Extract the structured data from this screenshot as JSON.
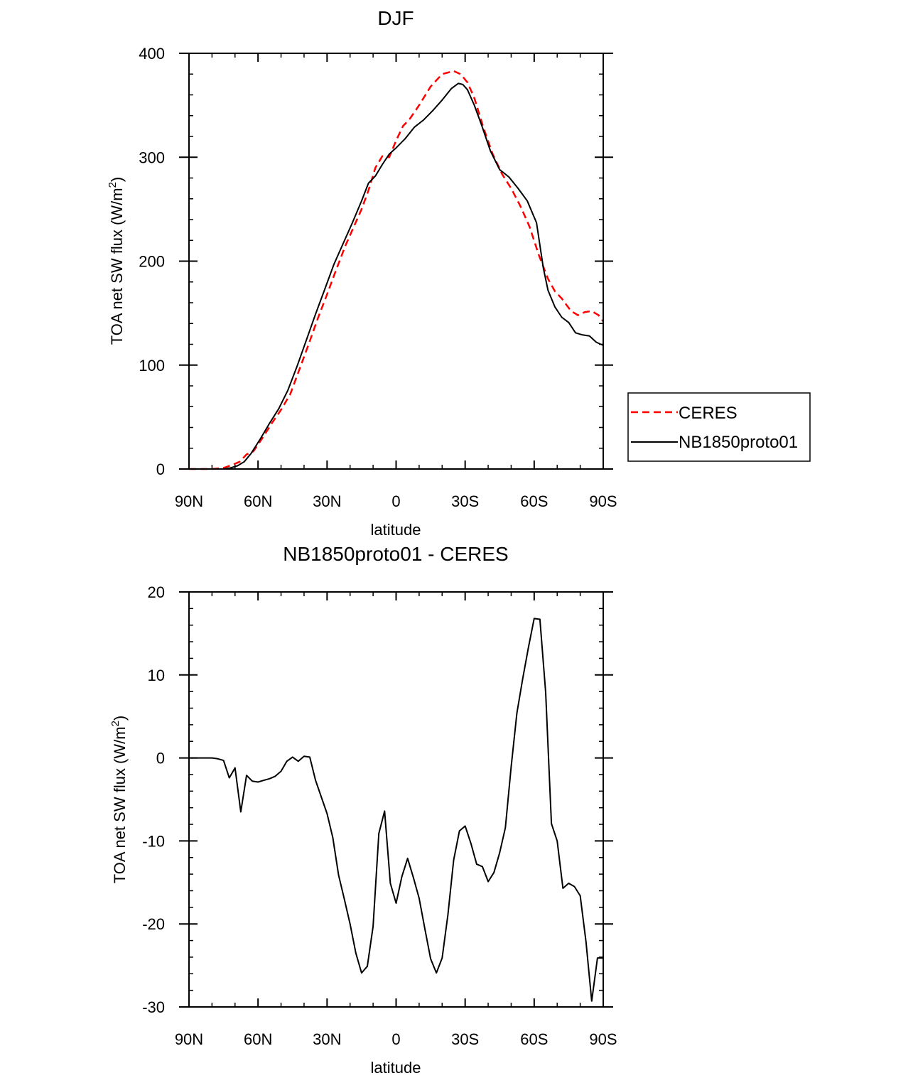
{
  "chart_data": [
    {
      "type": "line",
      "title": "DJF",
      "xlabel": "latitude",
      "ylabel_main": "TOA net SW flux (W/m",
      "ylabel_sup": "2",
      "ylabel_close": ")",
      "xlim": [
        -90,
        90
      ],
      "ylim": [
        0,
        400
      ],
      "x_ticks": [
        -90,
        -60,
        -30,
        0,
        30,
        60,
        90
      ],
      "x_tick_labels": [
        "90N",
        "60N",
        "30N",
        "0",
        "30S",
        "60S",
        "90S"
      ],
      "x_minor_step": 10,
      "y_ticks": [
        0,
        100,
        200,
        300,
        400
      ],
      "y_tick_labels": [
        "0",
        "100",
        "200",
        "300",
        "400"
      ],
      "y_minor_step": 20,
      "legend": {
        "position": "outside-right"
      },
      "series": [
        {
          "name": "CERES",
          "color": "#ff0000",
          "dash": "dashed",
          "x": [
            -90,
            -80,
            -75,
            -71,
            -68,
            -65,
            -62,
            -58,
            -54,
            -50,
            -46,
            -42,
            -38,
            -34,
            -30,
            -26,
            -22,
            -18,
            -15,
            -12,
            -9,
            -6,
            -3,
            0,
            3,
            6,
            10,
            15,
            20,
            25,
            28,
            31,
            34,
            38,
            42,
            46,
            50,
            54,
            58,
            62,
            66,
            69,
            72,
            76,
            79,
            82,
            85,
            88,
            90
          ],
          "y": [
            0,
            0,
            1,
            4,
            7,
            14,
            17,
            30,
            44,
            57,
            72,
            96,
            120,
            145,
            168,
            192,
            215,
            235,
            250,
            268,
            290,
            301,
            300,
            316,
            330,
            337,
            350,
            368,
            380,
            383,
            380,
            372,
            357,
            328,
            303,
            284,
            270,
            253,
            233,
            206,
            183,
            171,
            164,
            152,
            148,
            151,
            152,
            148,
            142
          ]
        },
        {
          "name": "NB1850proto01",
          "color": "#000000",
          "dash": "solid",
          "x": [
            -90,
            -80,
            -75,
            -72,
            -69,
            -66,
            -63,
            -59,
            -55,
            -51,
            -47,
            -43,
            -39,
            -35,
            -31,
            -27,
            -23,
            -19,
            -15,
            -12,
            -9,
            -6,
            -3,
            0,
            4,
            8,
            12,
            16,
            20,
            24,
            27,
            29,
            31,
            34,
            37,
            41,
            45,
            49,
            53,
            57,
            61,
            64,
            66,
            69,
            72,
            75,
            78,
            81,
            84,
            87,
            90
          ],
          "y": [
            0,
            0,
            0,
            1,
            3,
            7,
            15,
            29,
            44,
            58,
            76,
            99,
            124,
            149,
            173,
            197,
            217,
            237,
            258,
            275,
            282,
            293,
            303,
            309,
            318,
            329,
            336,
            345,
            355,
            366,
            371,
            370,
            365,
            350,
            332,
            306,
            288,
            281,
            270,
            258,
            237,
            193,
            172,
            156,
            146,
            141,
            131,
            129,
            128,
            122,
            119
          ]
        }
      ]
    },
    {
      "type": "line",
      "title": "NB1850proto01 - CERES",
      "xlabel": "latitude",
      "ylabel_main": "TOA net SW flux (W/m",
      "ylabel_sup": "2",
      "ylabel_close": ")",
      "xlim": [
        -90,
        90
      ],
      "ylim": [
        -30,
        20
      ],
      "x_ticks": [
        -90,
        -60,
        -30,
        0,
        30,
        60,
        90
      ],
      "x_tick_labels": [
        "90N",
        "60N",
        "30N",
        "0",
        "30S",
        "60S",
        "90S"
      ],
      "x_minor_step": 10,
      "y_ticks": [
        -30,
        -20,
        -10,
        0,
        10,
        20
      ],
      "y_tick_labels": [
        "-30",
        "-20",
        "-10",
        "0",
        "10",
        "20"
      ],
      "y_minor_step": 2,
      "series": [
        {
          "name": "NB1850proto01 - CERES",
          "color": "#000000",
          "dash": "solid",
          "x": [
            -90,
            -82.5,
            -80,
            -77.5,
            -75,
            -72.5,
            -70,
            -67.5,
            -65,
            -62.5,
            -60,
            -57.5,
            -55,
            -52.5,
            -50,
            -47.5,
            -45,
            -42.5,
            -40,
            -37.5,
            -35,
            -32.5,
            -30,
            -27.5,
            -25,
            -22.5,
            -20,
            -17.5,
            -15,
            -12.5,
            -10,
            -7.5,
            -5,
            -2.5,
            0,
            2.5,
            5,
            7.5,
            10,
            12.5,
            15,
            17.5,
            20,
            22.5,
            25,
            27.5,
            30,
            32.5,
            35,
            37.5,
            40,
            42.5,
            45,
            47.5,
            50,
            52.5,
            55,
            57.5,
            60,
            62.5,
            65,
            67.5,
            70,
            72.5,
            75,
            77.5,
            80,
            82.5,
            85,
            87.5,
            90
          ],
          "y": [
            0,
            0,
            0,
            -0.1,
            -0.3,
            -2.4,
            -1.2,
            -6.5,
            -2.1,
            -2.8,
            -2.9,
            -2.7,
            -2.5,
            -2.2,
            -1.6,
            -0.4,
            0.1,
            -0.4,
            0.2,
            0.1,
            -2.7,
            -4.7,
            -6.7,
            -9.6,
            -14.1,
            -17.0,
            -20.0,
            -23.5,
            -25.9,
            -25.1,
            -20.3,
            -9.1,
            -6.4,
            -15.1,
            -17.5,
            -14.3,
            -12.1,
            -14.4,
            -16.9,
            -20.6,
            -24.2,
            -25.9,
            -24.1,
            -18.9,
            -12.3,
            -8.8,
            -8.2,
            -10.3,
            -12.8,
            -13.1,
            -14.9,
            -13.8,
            -11.4,
            -8.4,
            -1.1,
            5.4,
            9.5,
            13.3,
            16.8,
            16.7,
            7.9,
            -7.9,
            -10.0,
            -15.7,
            -15.1,
            -15.5,
            -16.6,
            -22.1,
            -29.3,
            -24.1,
            -24.1
          ]
        }
      ]
    }
  ]
}
